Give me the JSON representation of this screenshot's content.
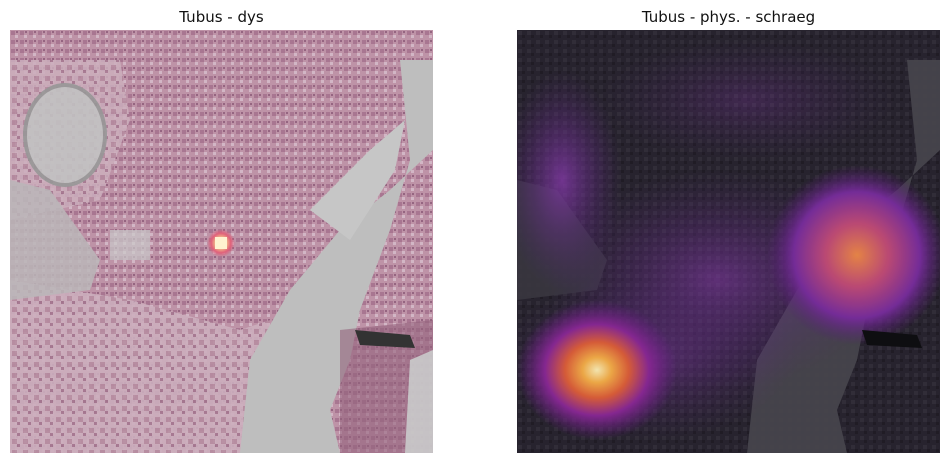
{
  "panels": [
    {
      "title": "Tubus - dys",
      "image": "he-stained-tissue-patch",
      "overlay": "attention-heatmap-single-hotspot",
      "colormap": "magma"
    },
    {
      "title": "Tubus - phys. - schraeg",
      "image": "he-stained-tissue-patch",
      "overlay": "attention-heatmap-diffuse",
      "colormap": "magma"
    }
  ],
  "colors": {
    "tissue_pink": "#b8899f",
    "tissue_dark": "#7d4a66",
    "lumen_gray": "#b4b4b4",
    "heat_purple": "#7b2fa0",
    "heat_orange": "#f08a3c",
    "heat_yellow": "#fde39a",
    "heat_dark": "#1c1a22"
  }
}
